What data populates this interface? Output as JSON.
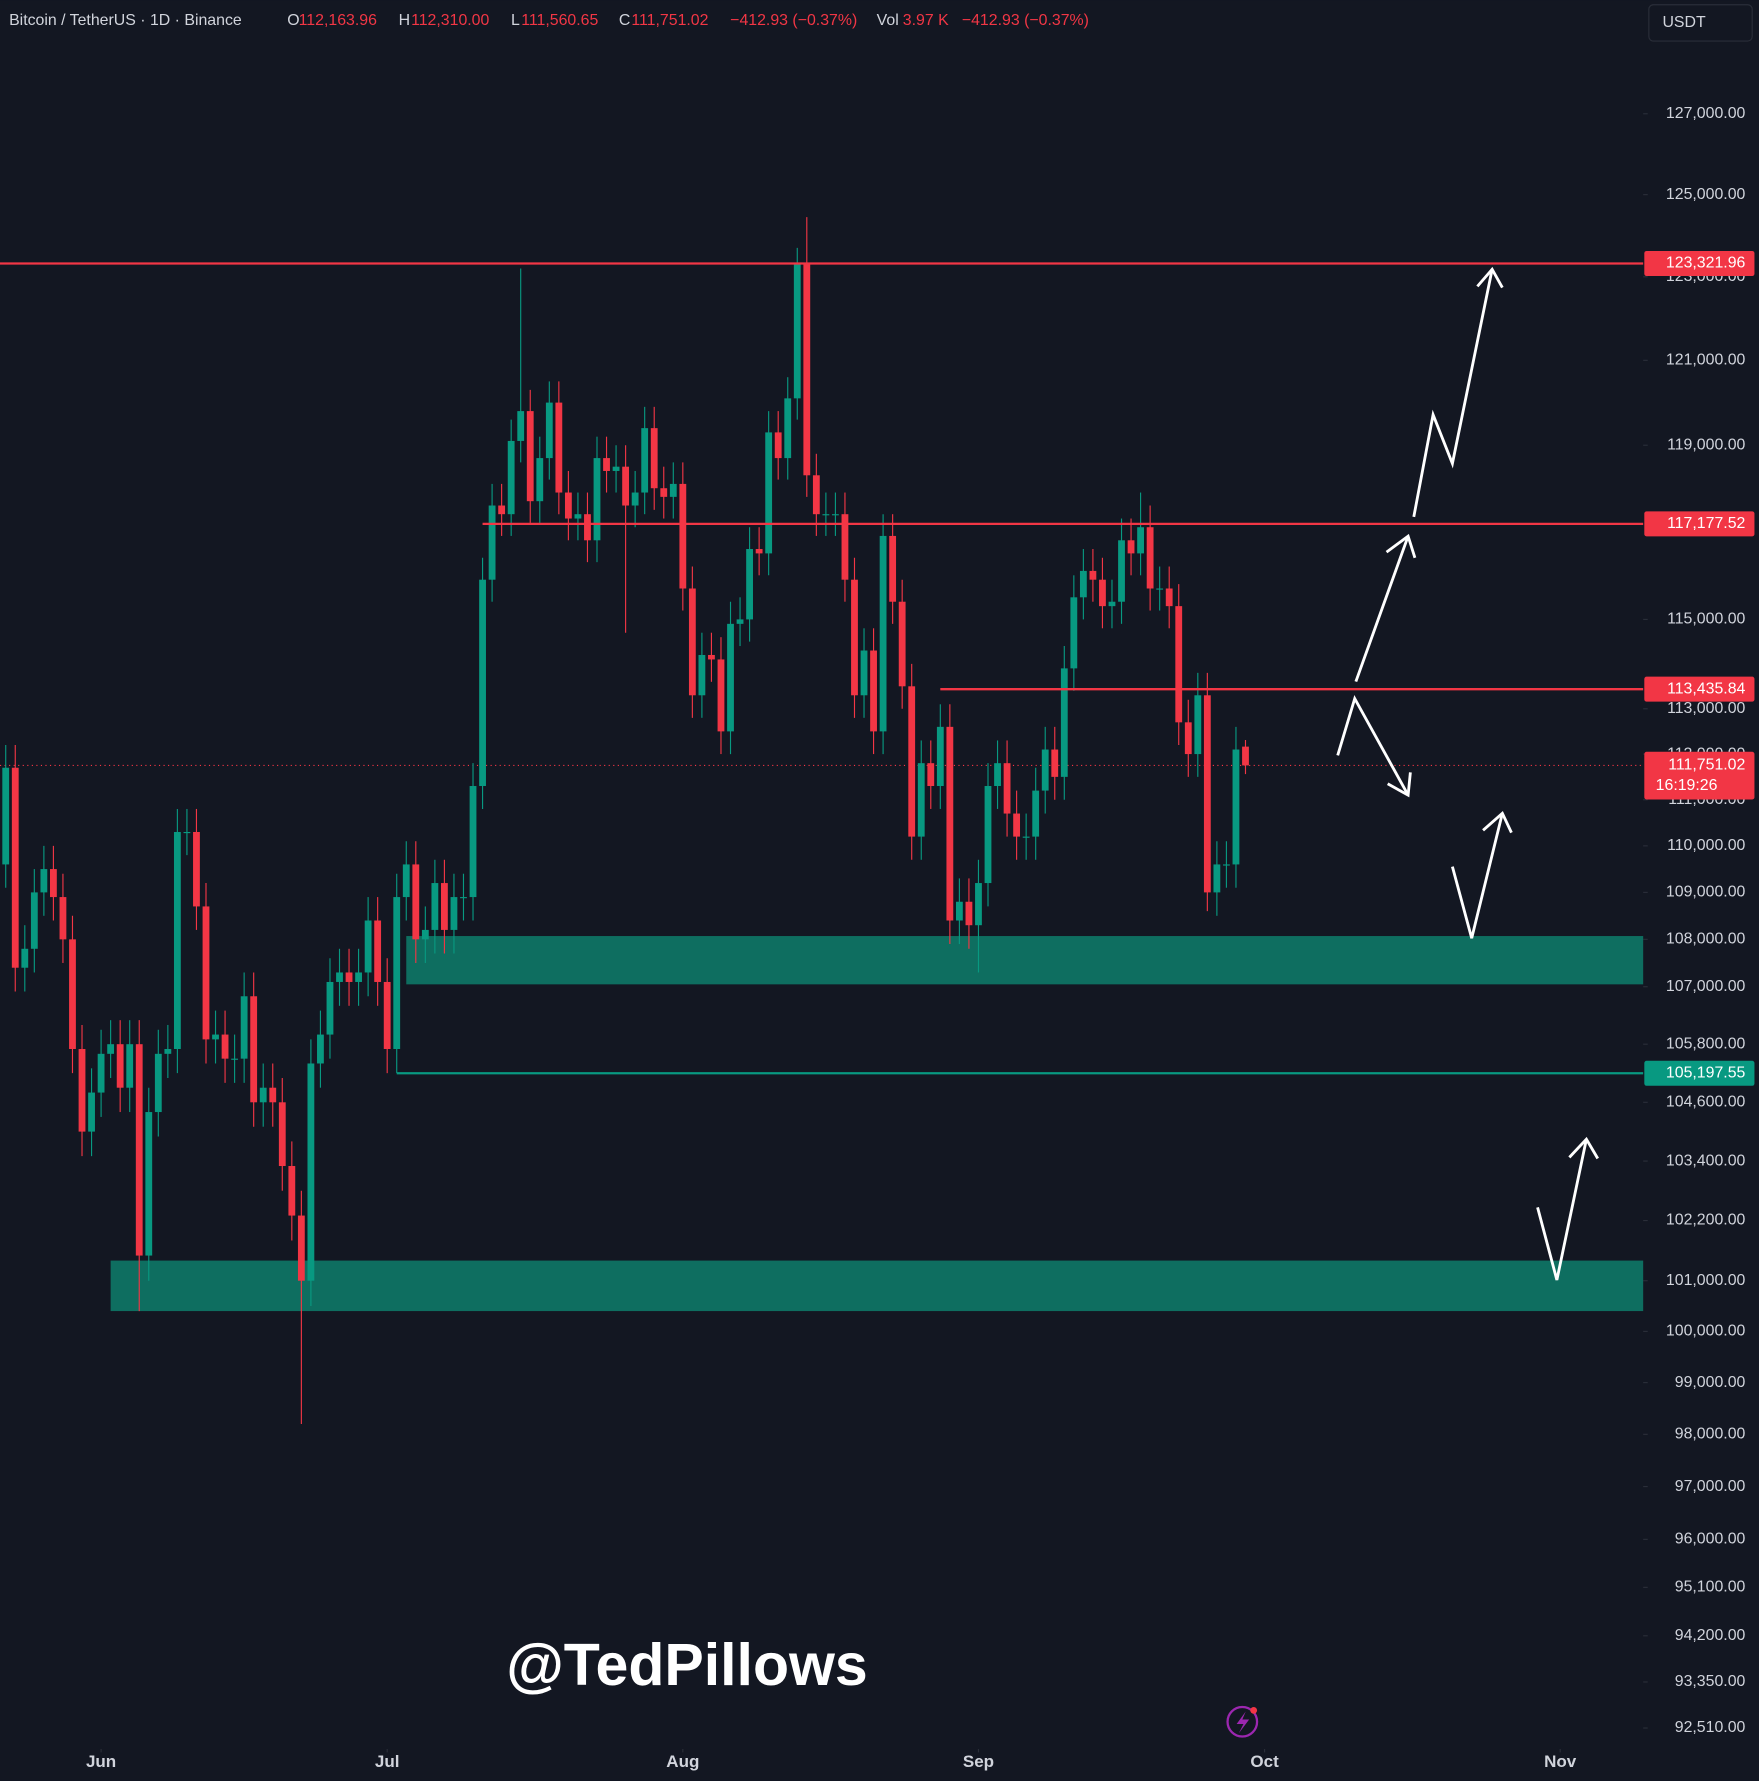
{
  "header": {
    "symbol": "Bitcoin / TetherUS · 1D · Binance",
    "ohlc": [
      {
        "key": "O",
        "label": "112,163.96"
      },
      {
        "key": "H",
        "label": "112,310.00"
      },
      {
        "key": "L",
        "label": "111,560.65"
      },
      {
        "key": "C",
        "label": "111,751.02"
      }
    ],
    "change": "−412.93 (−0.37%)",
    "vol_key": "Vol",
    "vol": "3.97 K",
    "vol_change": "−412.93 (−0.37%)"
  },
  "currency": "USDT",
  "watermark": "@TedPillows",
  "chart_data": {
    "type": "candlestick",
    "log_scale": true,
    "colors": {
      "up": "#089981",
      "down": "#f23645"
    },
    "xlim": [
      -0.6,
      171.7
    ],
    "xticks": [
      {
        "value": 10,
        "label": "Jun"
      },
      {
        "value": 40,
        "label": "Jul"
      },
      {
        "value": 71,
        "label": "Aug"
      },
      {
        "value": 102,
        "label": "Sep"
      },
      {
        "value": 132,
        "label": "Oct"
      },
      {
        "value": 163,
        "label": "Nov"
      }
    ],
    "ylim": [
      92130,
      128710
    ],
    "yticks": [
      {
        "value": 127000,
        "label": "127,000.00"
      },
      {
        "value": 125000,
        "label": "125,000.00"
      },
      {
        "value": 123000,
        "label": "123,000.00"
      },
      {
        "value": 121000,
        "label": "121,000.00"
      },
      {
        "value": 119000,
        "label": "119,000.00"
      },
      {
        "value": 115000,
        "label": "115,000.00"
      },
      {
        "value": 113000,
        "label": "113,000.00"
      },
      {
        "value": 112000,
        "label": "112,000.00"
      },
      {
        "value": 111000,
        "label": "111,000.00"
      },
      {
        "value": 110000,
        "label": "110,000.00"
      },
      {
        "value": 109000,
        "label": "109,000.00"
      },
      {
        "value": 108000,
        "label": "108,000.00"
      },
      {
        "value": 107000,
        "label": "107,000.00"
      },
      {
        "value": 105800,
        "label": "105,800.00"
      },
      {
        "value": 104600,
        "label": "104,600.00"
      },
      {
        "value": 103400,
        "label": "103,400.00"
      },
      {
        "value": 102200,
        "label": "102,200.00"
      },
      {
        "value": 101000,
        "label": "101,000.00"
      },
      {
        "value": 100000,
        "label": "100,000.00"
      },
      {
        "value": 99000,
        "label": "99,000.00"
      },
      {
        "value": 98000,
        "label": "98,000.00"
      },
      {
        "value": 97000,
        "label": "97,000.00"
      },
      {
        "value": 96000,
        "label": "96,000.00"
      },
      {
        "value": 95100,
        "label": "95,100.00"
      },
      {
        "value": 94200,
        "label": "94,200.00"
      },
      {
        "value": 93350,
        "label": "93,350.00"
      },
      {
        "value": 92510,
        "label": "92,510.00"
      }
    ],
    "open": [
      109600,
      111700,
      107400,
      107800,
      109000,
      109500,
      108900,
      108000,
      105700,
      104000,
      104800,
      105600,
      105800,
      104900,
      105800,
      101500,
      104400,
      105600,
      105700,
      110300,
      110300,
      108700,
      105900,
      106000,
      105500,
      105500,
      106800,
      104600,
      104900,
      104600,
      103300,
      102300,
      101000,
      105400,
      106000,
      107100,
      107300,
      107100,
      107300,
      108400,
      107100,
      105700,
      108900,
      109600,
      108000,
      108200,
      109200,
      108200,
      108900,
      108900,
      111300,
      115900,
      117600,
      117400,
      119100,
      119800,
      117700,
      118700,
      120000,
      117900,
      117300,
      117400,
      116800,
      118700,
      118400,
      118500,
      117600,
      117900,
      119400,
      118000,
      117800,
      118100,
      115700,
      113300,
      114200,
      114100,
      112500,
      114900,
      115000,
      116600,
      116500,
      119300,
      118700,
      120100,
      123300,
      118300,
      117400,
      117400,
      117400,
      115900,
      113300,
      114300,
      112500,
      116900,
      115400,
      113500,
      110200,
      111800,
      111300,
      112600,
      108400,
      108800,
      108300,
      109200,
      111300,
      111800,
      110700,
      110200,
      110200,
      111200,
      112100,
      111500,
      113900,
      115500,
      116100,
      115900,
      115300,
      115400,
      116800,
      116500,
      117100,
      115700,
      115700,
      115300,
      112700,
      112000,
      113300,
      109000,
      109600,
      109600,
      112163.96
    ],
    "high": [
      112200,
      112200,
      108300,
      109500,
      110000,
      110000,
      109400,
      108500,
      106200,
      105300,
      106100,
      106300,
      106300,
      106300,
      106300,
      104900,
      106100,
      106200,
      110800,
      110800,
      110800,
      109200,
      106500,
      106500,
      106000,
      107300,
      107300,
      105400,
      105400,
      105100,
      103800,
      102800,
      105900,
      106500,
      107600,
      107800,
      107800,
      107800,
      108900,
      108900,
      107600,
      109400,
      110100,
      110100,
      108700,
      109700,
      109700,
      109400,
      109400,
      111800,
      116400,
      118100,
      118100,
      119600,
      123200,
      120300,
      119200,
      120500,
      120500,
      118400,
      117900,
      117900,
      119200,
      119200,
      119000,
      119000,
      118400,
      119900,
      119900,
      118500,
      118600,
      118600,
      116200,
      114700,
      114700,
      114600,
      115400,
      115500,
      117100,
      117100,
      119800,
      119800,
      120600,
      123700,
      124450,
      118800,
      117900,
      117900,
      117900,
      116400,
      114800,
      114800,
      117400,
      117400,
      115900,
      114000,
      112300,
      112300,
      113100,
      113100,
      109300,
      109300,
      109700,
      111800,
      112300,
      112300,
      111200,
      110700,
      111700,
      112600,
      112600,
      114400,
      116000,
      116600,
      116600,
      116400,
      115900,
      117300,
      117300,
      117900,
      117600,
      116200,
      116200,
      115800,
      113200,
      113800,
      113800,
      110100,
      110100,
      112600,
      112310
    ],
    "low": [
      109100,
      106900,
      106900,
      107300,
      108500,
      108400,
      107500,
      105200,
      103500,
      103500,
      104300,
      105100,
      104400,
      104400,
      100400,
      101000,
      103900,
      105100,
      105200,
      109800,
      108200,
      105400,
      105400,
      105000,
      105000,
      105000,
      104100,
      104100,
      104100,
      102800,
      101800,
      98200,
      100500,
      104900,
      105500,
      106600,
      106600,
      106600,
      106800,
      106600,
      105200,
      105200,
      108400,
      107500,
      107500,
      107700,
      107700,
      107700,
      108400,
      108400,
      110800,
      115400,
      116900,
      116900,
      118600,
      117200,
      117200,
      118200,
      117400,
      116800,
      116800,
      116300,
      116300,
      117900,
      117900,
      114700,
      117100,
      117400,
      117500,
      117300,
      117300,
      115200,
      112800,
      112800,
      113600,
      112000,
      112000,
      114400,
      114500,
      116000,
      116000,
      118200,
      118200,
      119600,
      117800,
      116900,
      116900,
      116900,
      115400,
      112800,
      112800,
      112000,
      112000,
      114900,
      113000,
      109700,
      109700,
      110800,
      110800,
      107900,
      107900,
      107800,
      107300,
      108700,
      110800,
      110200,
      109700,
      109700,
      109700,
      110700,
      111000,
      111000,
      113400,
      115000,
      115400,
      114800,
      114800,
      114900,
      116000,
      116000,
      115200,
      115200,
      114800,
      112200,
      111500,
      111500,
      108600,
      108500,
      109100,
      109100,
      111560.65
    ],
    "close": [
      111700,
      107400,
      107800,
      109000,
      109500,
      108900,
      108000,
      105700,
      104000,
      104800,
      105600,
      105800,
      104900,
      105800,
      101500,
      104400,
      105600,
      105700,
      110300,
      110300,
      108700,
      105900,
      106000,
      105500,
      105500,
      106800,
      104600,
      104900,
      104600,
      103300,
      102300,
      101000,
      105400,
      106000,
      107100,
      107300,
      107100,
      107300,
      108400,
      107100,
      105700,
      108900,
      109600,
      108000,
      108200,
      109200,
      108200,
      108900,
      108900,
      111300,
      115900,
      117600,
      117400,
      119100,
      119800,
      117700,
      118700,
      120000,
      117900,
      117300,
      117400,
      116800,
      118700,
      118400,
      118500,
      117600,
      117900,
      119400,
      118000,
      117800,
      118100,
      115700,
      113300,
      114200,
      114100,
      112500,
      114900,
      115000,
      116600,
      116500,
      119300,
      118700,
      120100,
      123300,
      118300,
      117400,
      117400,
      117400,
      115900,
      113300,
      114300,
      112500,
      116900,
      115400,
      113500,
      110200,
      111800,
      111300,
      112600,
      108400,
      108800,
      108300,
      109200,
      111300,
      111800,
      110700,
      110200,
      110200,
      111200,
      112100,
      111500,
      113900,
      115500,
      116100,
      115900,
      115300,
      115400,
      116800,
      116500,
      117100,
      115700,
      115700,
      115300,
      112700,
      112000,
      113300,
      109000,
      109600,
      109600,
      112100,
      111751.02
    ],
    "zones": [
      {
        "top": 108070,
        "bottom": 107050,
        "start": 42,
        "color": "#0e6e60"
      },
      {
        "top": 101400,
        "bottom": 100400,
        "start": 11,
        "color": "#0e6e60"
      }
    ],
    "levels": [
      {
        "value": 123321.96,
        "label": "123,321.96",
        "start": -0.6,
        "color": "#f23645"
      },
      {
        "value": 117177.52,
        "label": "117,177.52",
        "start": 50,
        "color": "#f23645"
      },
      {
        "value": 113435.84,
        "label": "113,435.84",
        "start": 98,
        "color": "#f23645"
      },
      {
        "value": 105197.55,
        "label": "105,197.55",
        "start": 41,
        "color": "#089981"
      }
    ],
    "last": {
      "value": 111751.02,
      "label": "111,751.02",
      "countdown": "16:19:26",
      "color": "#f23645"
    }
  }
}
